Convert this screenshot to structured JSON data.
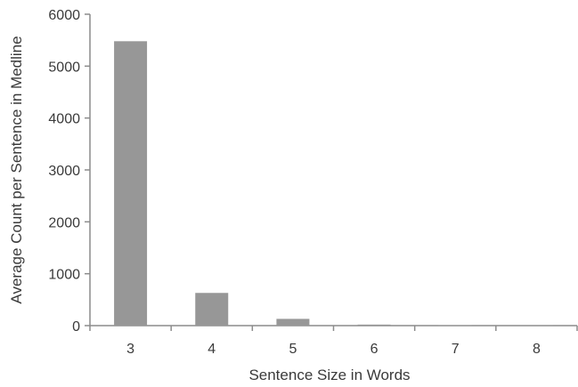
{
  "chart_data": {
    "type": "bar",
    "title": "",
    "xlabel": "Sentence Size in Words",
    "ylabel": "Average Count per Sentence in Medline",
    "categories": [
      "3",
      "4",
      "5",
      "6",
      "7",
      "8"
    ],
    "values": [
      5480,
      630,
      130,
      20,
      6,
      3
    ],
    "ylim": [
      0,
      6000
    ],
    "yticks": [
      0,
      1000,
      2000,
      3000,
      4000,
      5000,
      6000
    ],
    "grid": false,
    "bar_color": "#979797",
    "axis_color": "#8c8c8c"
  }
}
